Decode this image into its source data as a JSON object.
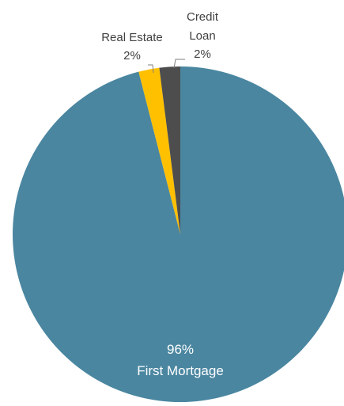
{
  "chart_data": {
    "type": "pie",
    "title": "",
    "slices": [
      {
        "label": "First Mortgage",
        "value": 96,
        "value_label": "96%",
        "color": "#4A86A0",
        "label_placement": "inside"
      },
      {
        "label": "Real Estate",
        "value": 2,
        "value_label": "2%",
        "color": "#FFC000",
        "label_placement": "outside"
      },
      {
        "label": "Credit Loan",
        "value": 2,
        "value_label": "2%",
        "color": "#4D4D4D",
        "label_placement": "outside"
      }
    ],
    "start_angle": "12 o'clock",
    "direction": "clockwise",
    "legend": "none"
  }
}
